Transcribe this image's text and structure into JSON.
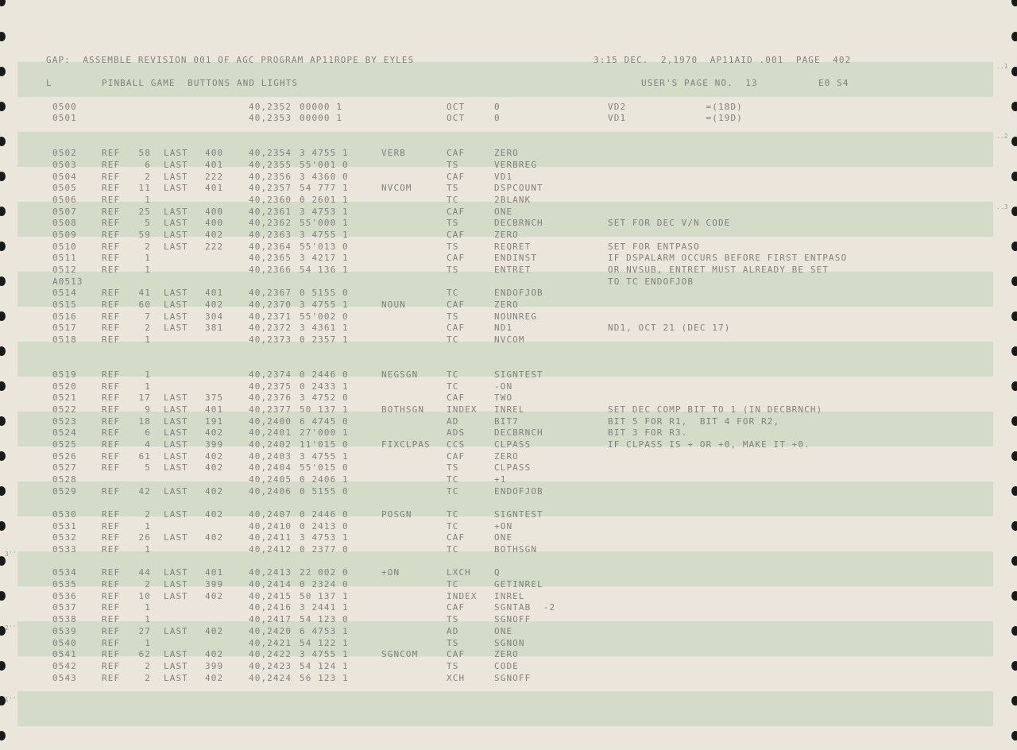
{
  "header": {
    "title": "GAP:  ASSEMBLE REVISION 001 OF AGC PROGRAM AP11ROPE BY EYLES",
    "timestamp": "3:15 DEC.  2,1970  AP11AID .001  PAGE  402",
    "section_marker": "L",
    "section_title": "PINBALL GAME  BUTTONS AND LIGHTS",
    "user_page": "USER'S PAGE NO.  13",
    "eo": "E0 S4"
  },
  "margin_marks": {
    "left": [
      "3''",
      "2''",
      "1''"
    ],
    "right": [
      "..1",
      "..2",
      "..3"
    ]
  },
  "colors": {
    "paper": "#ebe6dc",
    "band": "#d4dbc9",
    "ink": "#7f817a"
  },
  "lines": [
    null,
    null,
    null,
    null,
    [
      "0500",
      "",
      "",
      "",
      "",
      "40,2352",
      "00000 1",
      "",
      "OCT",
      "0",
      "VD2             =(18D)"
    ],
    [
      "0501",
      "",
      "",
      "",
      "",
      "40,2353",
      "00000 1",
      "",
      "OCT",
      "0",
      "VD1             =(19D)"
    ],
    null,
    null,
    [
      "0502",
      "REF",
      "58",
      "LAST",
      "400",
      "40,2354",
      "3 4755 1",
      "VERB",
      "CAF",
      "ZERO",
      ""
    ],
    [
      "0503",
      "REF",
      "6",
      "LAST",
      "401",
      "40,2355",
      "55'001 0",
      "",
      "TS",
      "VERBREG",
      ""
    ],
    [
      "0504",
      "REF",
      "2",
      "LAST",
      "222",
      "40,2356",
      "3 4360 0",
      "",
      "CAF",
      "VD1",
      ""
    ],
    [
      "0505",
      "REF",
      "11",
      "LAST",
      "401",
      "40,2357",
      "54 777 1",
      "NVCOM",
      "TS",
      "DSPCOUNT",
      ""
    ],
    [
      "0506",
      "REF",
      "1",
      "",
      "",
      "40,2360",
      "0 2601 1",
      "",
      "TC",
      "2BLANK",
      ""
    ],
    [
      "0507",
      "REF",
      "25",
      "LAST",
      "400",
      "40,2361",
      "3 4753 1",
      "",
      "CAF",
      "ONE",
      ""
    ],
    [
      "0508",
      "REF",
      "5",
      "LAST",
      "400",
      "40,2362",
      "55'000 1",
      "",
      "TS",
      "DECBRNCH",
      "SET FOR DEC V/N CODE"
    ],
    [
      "0509",
      "REF",
      "59",
      "LAST",
      "402",
      "40,2363",
      "3 4755 1",
      "",
      "CAF",
      "ZERO",
      ""
    ],
    [
      "0510",
      "REF",
      "2",
      "LAST",
      "222",
      "40,2364",
      "55'013 0",
      "",
      "TS",
      "REQRET",
      "SET FOR ENTPASO"
    ],
    [
      "0511",
      "REF",
      "1",
      "",
      "",
      "40,2365",
      "3 4217 1",
      "",
      "CAF",
      "ENDINST",
      "IF DSPALARM OCCURS BEFORE FIRST ENTPASO"
    ],
    [
      "0512",
      "REF",
      "1",
      "",
      "",
      "40,2366",
      "54 136 1",
      "",
      "TS",
      "ENTRET",
      "OR NVSUB, ENTRET MUST ALREADY BE SET"
    ],
    [
      "A0513",
      "",
      "",
      "",
      "",
      "",
      "",
      "",
      "",
      "",
      "TO TC ENDOFJOB"
    ],
    [
      "0514",
      "REF",
      "41",
      "LAST",
      "401",
      "40,2367",
      "0 5155 0",
      "",
      "TC",
      "ENDOFJOB",
      ""
    ],
    [
      "0515",
      "REF",
      "60",
      "LAST",
      "402",
      "40,2370",
      "3 4755 1",
      "NOUN",
      "CAF",
      "ZERO",
      ""
    ],
    [
      "0516",
      "REF",
      "7",
      "LAST",
      "304",
      "40,2371",
      "55'002 0",
      "",
      "TS",
      "NOUNREG",
      ""
    ],
    [
      "0517",
      "REF",
      "2",
      "LAST",
      "381",
      "40,2372",
      "3 4361 1",
      "",
      "CAF",
      "ND1",
      "ND1, OCT 21 (DEC 17)"
    ],
    [
      "0518",
      "REF",
      "1",
      "",
      "",
      "40,2373",
      "0 2357 1",
      "",
      "TC",
      "NVCOM",
      ""
    ],
    null,
    null,
    [
      "0519",
      "REF",
      "1",
      "",
      "",
      "40,2374",
      "0 2446 0",
      "NEGSGN",
      "TC",
      "SIGNTEST",
      ""
    ],
    [
      "0520",
      "REF",
      "1",
      "",
      "",
      "40,2375",
      "0 2433 1",
      "",
      "TC",
      "-ON",
      ""
    ],
    [
      "0521",
      "REF",
      "17",
      "LAST",
      "375",
      "40,2376",
      "3 4752 0",
      "",
      "CAF",
      "TWO",
      ""
    ],
    [
      "0522",
      "REF",
      "9",
      "LAST",
      "401",
      "40,2377",
      "50 137 1",
      "BOTHSGN",
      "INDEX",
      "INREL",
      "SET DEC COMP BIT TO 1 (IN DECBRNCH)"
    ],
    [
      "0523",
      "REF",
      "18",
      "LAST",
      "191",
      "40,2400",
      "6 4745 0",
      "",
      "AD",
      "BIT7",
      "BIT 5 FOR R1,  BIT 4 FOR R2,"
    ],
    [
      "0524",
      "REF",
      "6",
      "LAST",
      "402",
      "40,2401",
      "27'000 1",
      "",
      "ADS",
      "DECBRNCH",
      "BIT 3 FOR R3."
    ],
    [
      "0525",
      "REF",
      "4",
      "LAST",
      "399",
      "40,2402",
      "11'015 0",
      "FIXCLPAS",
      "CCS",
      "CLPASS",
      "IF CLPASS IS + OR +0, MAKE IT +0."
    ],
    [
      "0526",
      "REF",
      "61",
      "LAST",
      "402",
      "40,2403",
      "3 4755 1",
      "",
      "CAF",
      "ZERO",
      ""
    ],
    [
      "0527",
      "REF",
      "5",
      "LAST",
      "402",
      "40,2404",
      "55'015 0",
      "",
      "TS",
      "CLPASS",
      ""
    ],
    [
      "0528",
      "",
      "",
      "",
      "",
      "40,2405",
      "0 2406 1",
      "",
      "TC",
      "+1",
      ""
    ],
    [
      "0529",
      "REF",
      "42",
      "LAST",
      "402",
      "40,2406",
      "0 5155 0",
      "",
      "TC",
      "ENDOFJOB",
      ""
    ],
    null,
    [
      "0530",
      "REF",
      "2",
      "LAST",
      "402",
      "40,2407",
      "0 2446 0",
      "POSGN",
      "TC",
      "SIGNTEST",
      ""
    ],
    [
      "0531",
      "REF",
      "1",
      "",
      "",
      "40,2410",
      "0 2413 0",
      "",
      "TC",
      "+ON",
      ""
    ],
    [
      "0532",
      "REF",
      "26",
      "LAST",
      "402",
      "40,2411",
      "3 4753 1",
      "",
      "CAF",
      "ONE",
      ""
    ],
    [
      "0533",
      "REF",
      "1",
      "",
      "",
      "40,2412",
      "0 2377 0",
      "",
      "TC",
      "BOTHSGN",
      ""
    ],
    null,
    [
      "0534",
      "REF",
      "44",
      "LAST",
      "401",
      "40,2413",
      "22 002 0",
      "+ON",
      "LXCH",
      "Q",
      ""
    ],
    [
      "0535",
      "REF",
      "2",
      "LAST",
      "399",
      "40,2414",
      "0 2324 0",
      "",
      "TC",
      "GETINREL",
      ""
    ],
    [
      "0536",
      "REF",
      "10",
      "LAST",
      "402",
      "40,2415",
      "50 137 1",
      "",
      "INDEX",
      "INREL",
      ""
    ],
    [
      "0537",
      "REF",
      "1",
      "",
      "",
      "40,2416",
      "3 2441 1",
      "",
      "CAF",
      "SGNTAB  -2",
      ""
    ],
    [
      "0538",
      "REF",
      "1",
      "",
      "",
      "40,2417",
      "54 123 0",
      "",
      "TS",
      "SGNOFF",
      ""
    ],
    [
      "0539",
      "REF",
      "27",
      "LAST",
      "402",
      "40,2420",
      "6 4753 1",
      "",
      "AD",
      "ONE",
      ""
    ],
    [
      "0540",
      "REF",
      "1",
      "",
      "",
      "40,2421",
      "54 122 1",
      "",
      "TS",
      "SGNON",
      ""
    ],
    [
      "0541",
      "REF",
      "62",
      "LAST",
      "402",
      "40,2422",
      "3 4755 1",
      "SGNCOM",
      "CAF",
      "ZERO",
      ""
    ],
    [
      "0542",
      "REF",
      "2",
      "LAST",
      "399",
      "40,2423",
      "54 124 1",
      "",
      "TS",
      "CODE",
      ""
    ],
    [
      "0543",
      "REF",
      "2",
      "LAST",
      "402",
      "40,2424",
      "56 123 1",
      "",
      "XCH",
      "SGNOFF",
      ""
    ]
  ]
}
